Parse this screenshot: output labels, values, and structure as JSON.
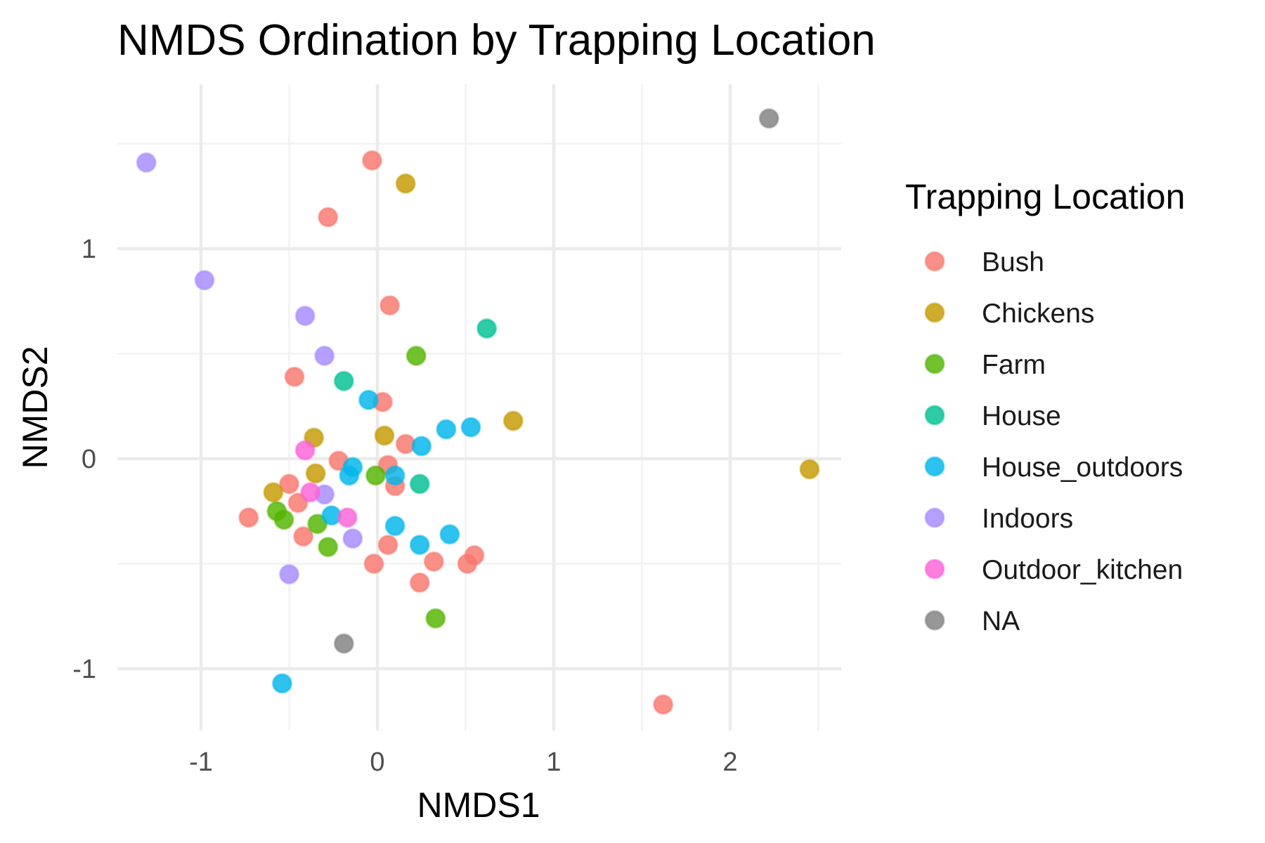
{
  "chart_data": {
    "type": "scatter",
    "title": "NMDS Ordination by Trapping Location",
    "xlabel": "NMDS1",
    "ylabel": "NMDS2",
    "xlim": [
      -1.5,
      2.6
    ],
    "ylim": [
      -1.3,
      1.7
    ],
    "x_ticks": [
      -1,
      0,
      1,
      2
    ],
    "x_tick_labels": [
      "-1",
      "0",
      "1",
      "2"
    ],
    "y_ticks": [
      -1,
      0,
      1
    ],
    "y_tick_labels": [
      "-1",
      "0",
      "1"
    ],
    "grid": true,
    "legend": {
      "title": "Trapping Location",
      "position": "right"
    },
    "series": [
      {
        "name": "Bush",
        "color": "#F8766D",
        "points": [
          [
            -0.03,
            1.42
          ],
          [
            -0.28,
            1.15
          ],
          [
            0.07,
            0.73
          ],
          [
            -0.47,
            0.39
          ],
          [
            0.03,
            0.27
          ],
          [
            0.16,
            0.07
          ],
          [
            -0.22,
            -0.01
          ],
          [
            0.06,
            -0.03
          ],
          [
            0.1,
            -0.13
          ],
          [
            -0.5,
            -0.12
          ],
          [
            -0.45,
            -0.21
          ],
          [
            -0.73,
            -0.28
          ],
          [
            -0.42,
            -0.37
          ],
          [
            0.06,
            -0.41
          ],
          [
            -0.02,
            -0.5
          ],
          [
            0.32,
            -0.49
          ],
          [
            0.51,
            -0.5
          ],
          [
            0.55,
            -0.46
          ],
          [
            0.24,
            -0.59
          ],
          [
            1.62,
            -1.17
          ]
        ]
      },
      {
        "name": "Chickens",
        "color": "#C49A00",
        "points": [
          [
            0.16,
            1.31
          ],
          [
            0.77,
            0.18
          ],
          [
            0.04,
            0.11
          ],
          [
            -0.36,
            0.1
          ],
          [
            -0.35,
            -0.07
          ],
          [
            -0.59,
            -0.16
          ],
          [
            2.45,
            -0.05
          ]
        ]
      },
      {
        "name": "Farm",
        "color": "#53B400",
        "points": [
          [
            0.22,
            0.49
          ],
          [
            -0.01,
            -0.08
          ],
          [
            -0.57,
            -0.25
          ],
          [
            -0.53,
            -0.29
          ],
          [
            -0.34,
            -0.31
          ],
          [
            -0.28,
            -0.42
          ],
          [
            0.33,
            -0.76
          ]
        ]
      },
      {
        "name": "House",
        "color": "#00C094",
        "points": [
          [
            0.62,
            0.62
          ],
          [
            -0.19,
            0.37
          ],
          [
            0.24,
            -0.12
          ]
        ]
      },
      {
        "name": "House_outdoors",
        "color": "#00B6EB",
        "points": [
          [
            -0.05,
            0.28
          ],
          [
            0.39,
            0.14
          ],
          [
            0.53,
            0.15
          ],
          [
            0.25,
            0.06
          ],
          [
            -0.14,
            -0.04
          ],
          [
            -0.16,
            -0.08
          ],
          [
            0.1,
            -0.08
          ],
          [
            -0.26,
            -0.27
          ],
          [
            0.1,
            -0.32
          ],
          [
            0.41,
            -0.36
          ],
          [
            0.24,
            -0.41
          ],
          [
            -0.54,
            -1.07
          ]
        ]
      },
      {
        "name": "Indoors",
        "color": "#A58AFF",
        "points": [
          [
            -1.31,
            1.41
          ],
          [
            -0.98,
            0.85
          ],
          [
            -0.41,
            0.68
          ],
          [
            -0.3,
            0.49
          ],
          [
            -0.3,
            -0.17
          ],
          [
            -0.14,
            -0.38
          ],
          [
            -0.5,
            -0.55
          ]
        ]
      },
      {
        "name": "Outdoor_kitchen",
        "color": "#FB61D7",
        "points": [
          [
            -0.41,
            0.04
          ],
          [
            -0.38,
            -0.16
          ],
          [
            -0.17,
            -0.28
          ]
        ]
      },
      {
        "name": "NA",
        "color": "#808080",
        "points": [
          [
            2.22,
            1.62
          ],
          [
            -0.19,
            -0.88
          ]
        ]
      }
    ]
  }
}
